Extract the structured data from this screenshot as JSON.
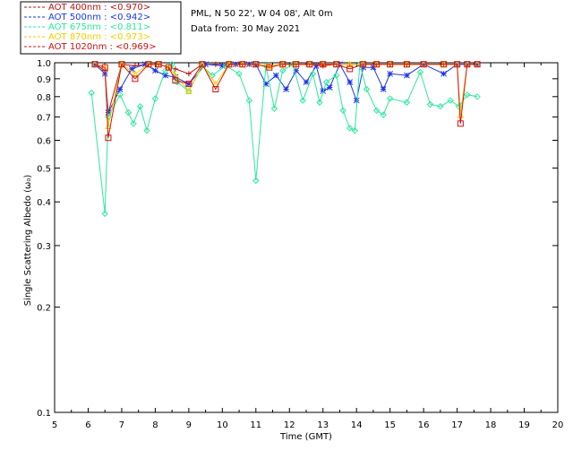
{
  "header": {
    "site": "PML, N 50 22', W 04 08', Alt 0m",
    "date": "Data from: 30 May 2021"
  },
  "colors": {
    "aot400": "#c01010",
    "aot500": "#1a35e8",
    "aot675": "#2ee89a",
    "aot870": "#f2d000",
    "aot1020": "#d41010"
  },
  "chart_data": {
    "type": "line",
    "xlabel": "Time (GMT)",
    "ylabel": "Single Scattering Albedo (ω₀)",
    "xlim": [
      5,
      20
    ],
    "ylim": [
      0.1,
      1.0
    ],
    "yscale": "log",
    "x_ticks": [
      5,
      6,
      7,
      8,
      9,
      10,
      11,
      12,
      13,
      14,
      15,
      16,
      17,
      18,
      19,
      20
    ],
    "y_ticks": [
      0.1,
      0.2,
      0.3,
      0.4,
      0.5,
      0.6,
      0.7,
      0.8,
      0.9,
      1.0
    ],
    "y_tick_labels": [
      "0.1",
      "0.2",
      "0.3",
      "0.4",
      "0.5",
      "0.6",
      "0.7",
      "0.8",
      "0.9",
      "1.0"
    ],
    "legend_position": "top-left, outside plot",
    "series": [
      {
        "name": "AOT  400nm : <0.970>",
        "color": "#c01010",
        "marker": "plus",
        "x": [
          6.2,
          6.5,
          6.6,
          7.0,
          7.4,
          7.8,
          8.1,
          8.4,
          8.6,
          9.0,
          9.4,
          9.8,
          10.2,
          10.6,
          11.0,
          11.4,
          11.8,
          12.2,
          12.6,
          13.0,
          13.4,
          13.8,
          14.2,
          14.6,
          15.0,
          15.5,
          16.0,
          16.6,
          17.0,
          17.3,
          17.6
        ],
        "y": [
          0.99,
          0.95,
          0.72,
          0.99,
          0.98,
          0.99,
          0.99,
          0.97,
          0.96,
          0.93,
          0.99,
          0.99,
          0.99,
          0.99,
          0.99,
          0.98,
          0.99,
          0.99,
          0.99,
          0.98,
          0.99,
          0.99,
          0.99,
          0.99,
          0.99,
          0.99,
          0.99,
          0.99,
          0.99,
          0.99,
          0.99
        ]
      },
      {
        "name": "AOT  500nm : <0.942>",
        "color": "#1a35e8",
        "marker": "asterisk",
        "x": [
          6.2,
          6.5,
          6.6,
          6.95,
          7.3,
          7.7,
          8.0,
          8.3,
          8.6,
          9.0,
          9.5,
          10.0,
          10.4,
          10.8,
          11.0,
          11.3,
          11.6,
          11.9,
          12.2,
          12.5,
          12.8,
          13.0,
          13.2,
          13.5,
          13.8,
          14.0,
          14.2,
          14.5,
          14.8,
          15.0,
          15.5,
          16.0,
          16.6,
          17.0,
          17.3,
          17.6
        ],
        "y": [
          0.99,
          0.93,
          0.72,
          0.84,
          0.96,
          0.99,
          0.95,
          0.92,
          0.91,
          0.87,
          0.99,
          0.98,
          0.99,
          0.99,
          0.99,
          0.87,
          0.92,
          0.84,
          0.95,
          0.88,
          0.98,
          0.83,
          0.85,
          0.99,
          0.88,
          0.78,
          0.97,
          0.97,
          0.84,
          0.93,
          0.92,
          0.99,
          0.93,
          0.99,
          0.99,
          0.99
        ]
      },
      {
        "name": "AOT  675nm : <0.811>",
        "color": "#2ee89a",
        "marker": "diamond",
        "x": [
          6.1,
          6.5,
          6.6,
          6.95,
          7.2,
          7.35,
          7.55,
          7.75,
          8.0,
          8.3,
          8.5,
          8.65,
          9.0,
          9.4,
          9.7,
          10.1,
          10.5,
          10.8,
          11.0,
          11.3,
          11.55,
          11.8,
          12.1,
          12.4,
          12.7,
          12.9,
          13.1,
          13.4,
          13.6,
          13.8,
          13.95,
          14.1,
          14.3,
          14.6,
          14.8,
          15.0,
          15.5,
          15.9,
          16.2,
          16.5,
          16.8,
          17.05,
          17.3,
          17.6
        ],
        "y": [
          0.82,
          0.37,
          0.7,
          0.81,
          0.72,
          0.67,
          0.75,
          0.64,
          0.79,
          0.95,
          0.99,
          0.88,
          0.83,
          0.98,
          0.92,
          0.98,
          0.93,
          0.78,
          0.46,
          0.98,
          0.74,
          0.95,
          0.99,
          0.78,
          0.93,
          0.77,
          0.88,
          0.92,
          0.73,
          0.65,
          0.64,
          0.99,
          0.84,
          0.73,
          0.71,
          0.79,
          0.77,
          0.94,
          0.76,
          0.75,
          0.78,
          0.75,
          0.81,
          0.8
        ]
      },
      {
        "name": "AOT  870nm : <0.973>",
        "color": "#f2d000",
        "marker": "triangle",
        "x": [
          6.2,
          6.5,
          6.6,
          7.0,
          7.4,
          7.8,
          8.1,
          8.4,
          8.6,
          9.0,
          9.4,
          9.8,
          10.2,
          10.6,
          11.0,
          11.4,
          11.8,
          12.2,
          12.6,
          13.0,
          13.4,
          13.8,
          14.2,
          14.6,
          15.0,
          15.5,
          16.0,
          16.6,
          17.0,
          17.1,
          17.3,
          17.6
        ],
        "y": [
          0.99,
          0.97,
          0.66,
          0.99,
          0.93,
          0.99,
          0.99,
          0.97,
          0.92,
          0.83,
          0.99,
          0.87,
          0.99,
          0.99,
          0.99,
          0.98,
          0.99,
          0.99,
          0.99,
          0.99,
          0.99,
          0.99,
          0.99,
          0.99,
          0.99,
          0.99,
          0.99,
          0.99,
          0.99,
          0.71,
          0.99,
          0.99
        ]
      },
      {
        "name": "AOT 1020nm : <0.969>",
        "color": "#d41010",
        "marker": "square",
        "x": [
          6.2,
          6.5,
          6.6,
          7.0,
          7.4,
          7.8,
          8.1,
          8.4,
          8.6,
          9.0,
          9.4,
          9.8,
          10.2,
          10.6,
          11.0,
          11.4,
          11.8,
          12.2,
          12.6,
          13.0,
          13.4,
          13.8,
          14.2,
          14.6,
          15.0,
          15.5,
          16.0,
          16.6,
          17.0,
          17.1,
          17.3,
          17.6
        ],
        "y": [
          0.99,
          0.97,
          0.61,
          0.99,
          0.9,
          0.99,
          0.99,
          0.97,
          0.89,
          0.87,
          0.99,
          0.84,
          0.99,
          0.99,
          0.99,
          0.97,
          0.99,
          0.99,
          0.99,
          0.99,
          0.99,
          0.96,
          0.99,
          0.99,
          0.99,
          0.99,
          0.99,
          0.99,
          0.99,
          0.67,
          0.99,
          0.99
        ]
      }
    ]
  }
}
